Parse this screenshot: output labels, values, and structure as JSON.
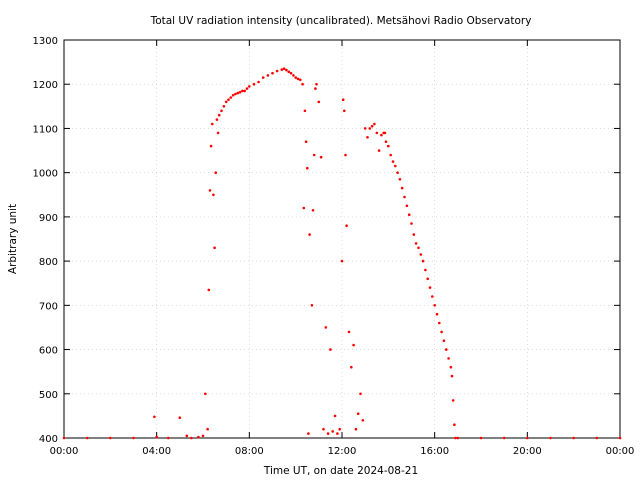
{
  "chart_data": {
    "type": "scatter",
    "title": "Total UV radiation intensity (uncalibrated). Metsähovi Radio Observatory",
    "xlabel": "Time UT, on date 2024-08-21",
    "ylabel": "Arbitrary unit",
    "xlim": [
      0,
      24
    ],
    "ylim": [
      400,
      1300
    ],
    "x_ticks": [
      {
        "value": 0,
        "label": "00:00"
      },
      {
        "value": 4,
        "label": "04:00"
      },
      {
        "value": 8,
        "label": "08:00"
      },
      {
        "value": 12,
        "label": "12:00"
      },
      {
        "value": 16,
        "label": "16:00"
      },
      {
        "value": 20,
        "label": "20:00"
      },
      {
        "value": 24,
        "label": "00:00"
      }
    ],
    "y_ticks": [
      400,
      500,
      600,
      700,
      800,
      900,
      1000,
      1100,
      1200,
      1300
    ],
    "grid": true,
    "marker_color": "#ff0000",
    "series": [
      {
        "x": [
          0.0,
          1.0,
          2.0,
          3.0,
          3.9,
          4.0,
          4.5,
          5.0,
          5.3,
          5.5,
          5.8,
          6.0,
          6.1,
          6.2,
          6.25,
          6.3,
          6.35,
          6.4,
          6.45,
          6.5,
          6.55,
          6.6,
          6.65,
          6.7,
          6.8,
          6.9,
          7.0,
          7.1,
          7.2,
          7.3,
          7.4,
          7.5,
          7.6,
          7.7,
          7.8,
          7.9,
          8.0,
          8.2,
          8.4,
          8.6,
          8.8,
          9.0,
          9.2,
          9.4,
          9.5,
          9.6,
          9.7,
          9.8,
          9.9,
          10.0,
          10.1,
          10.2,
          10.3,
          10.35,
          10.4,
          10.45,
          10.5,
          10.55,
          10.6,
          10.7,
          10.75,
          10.8,
          10.85,
          10.9,
          11.0,
          11.1,
          11.2,
          11.3,
          11.4,
          11.5,
          11.6,
          11.7,
          11.8,
          11.9,
          12.0,
          12.05,
          12.1,
          12.15,
          12.2,
          12.3,
          12.4,
          12.5,
          12.6,
          12.7,
          12.8,
          12.9,
          13.0,
          13.1,
          13.2,
          13.3,
          13.4,
          13.5,
          13.6,
          13.7,
          13.8,
          13.85,
          13.9,
          14.0,
          14.1,
          14.2,
          14.3,
          14.4,
          14.5,
          14.6,
          14.7,
          14.8,
          14.9,
          15.0,
          15.1,
          15.2,
          15.3,
          15.4,
          15.5,
          15.6,
          15.7,
          15.8,
          15.9,
          16.0,
          16.1,
          16.2,
          16.3,
          16.4,
          16.5,
          16.6,
          16.7,
          16.75,
          16.8,
          16.85,
          16.9,
          17.0,
          18.0,
          19.0,
          20.0,
          21.0,
          22.0,
          23.0,
          24.0
        ],
        "y": [
          400,
          400,
          400,
          400,
          448,
          402,
          400,
          446,
          405,
          400,
          402,
          405,
          500,
          420,
          735,
          960,
          1060,
          1110,
          950,
          830,
          1000,
          1120,
          1090,
          1130,
          1140,
          1150,
          1160,
          1165,
          1170,
          1175,
          1178,
          1180,
          1182,
          1185,
          1185,
          1190,
          1195,
          1200,
          1205,
          1215,
          1220,
          1225,
          1230,
          1233,
          1235,
          1232,
          1228,
          1225,
          1220,
          1215,
          1212,
          1210,
          1200,
          920,
          1140,
          1070,
          1010,
          410,
          860,
          700,
          915,
          1040,
          1190,
          1200,
          1160,
          1035,
          420,
          650,
          410,
          600,
          415,
          450,
          410,
          420,
          800,
          1165,
          1140,
          1040,
          880,
          640,
          560,
          610,
          420,
          455,
          500,
          440,
          1100,
          1080,
          1100,
          1105,
          1110,
          1090,
          1050,
          1085,
          1090,
          1090,
          1070,
          1060,
          1040,
          1025,
          1015,
          1000,
          985,
          965,
          945,
          925,
          905,
          885,
          860,
          840,
          830,
          815,
          800,
          780,
          760,
          740,
          720,
          700,
          680,
          660,
          640,
          620,
          600,
          580,
          560,
          540,
          485,
          430,
          400,
          400,
          400,
          400,
          400,
          400,
          400,
          400,
          400
        ]
      }
    ]
  }
}
